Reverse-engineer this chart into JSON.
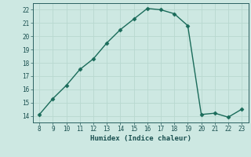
{
  "x": [
    8,
    9,
    10,
    11,
    12,
    13,
    14,
    15,
    16,
    17,
    18,
    19,
    20,
    21,
    22,
    23
  ],
  "y": [
    14.1,
    15.3,
    16.3,
    17.5,
    18.3,
    19.5,
    20.5,
    21.3,
    22.1,
    22.0,
    21.7,
    20.8,
    14.1,
    14.2,
    13.9,
    14.5
  ],
  "line_color": "#1a6b5a",
  "bg_color": "#cde8e2",
  "grid_color": "#b8d8d0",
  "xlabel": "Humidex (Indice chaleur)",
  "xlim": [
    7.5,
    23.5
  ],
  "ylim": [
    13.5,
    22.5
  ],
  "xticks": [
    8,
    9,
    10,
    11,
    12,
    13,
    14,
    15,
    16,
    17,
    18,
    19,
    20,
    21,
    22,
    23
  ],
  "yticks": [
    14,
    15,
    16,
    17,
    18,
    19,
    20,
    21,
    22
  ],
  "marker": "D",
  "markersize": 2.5,
  "linewidth": 1.0
}
